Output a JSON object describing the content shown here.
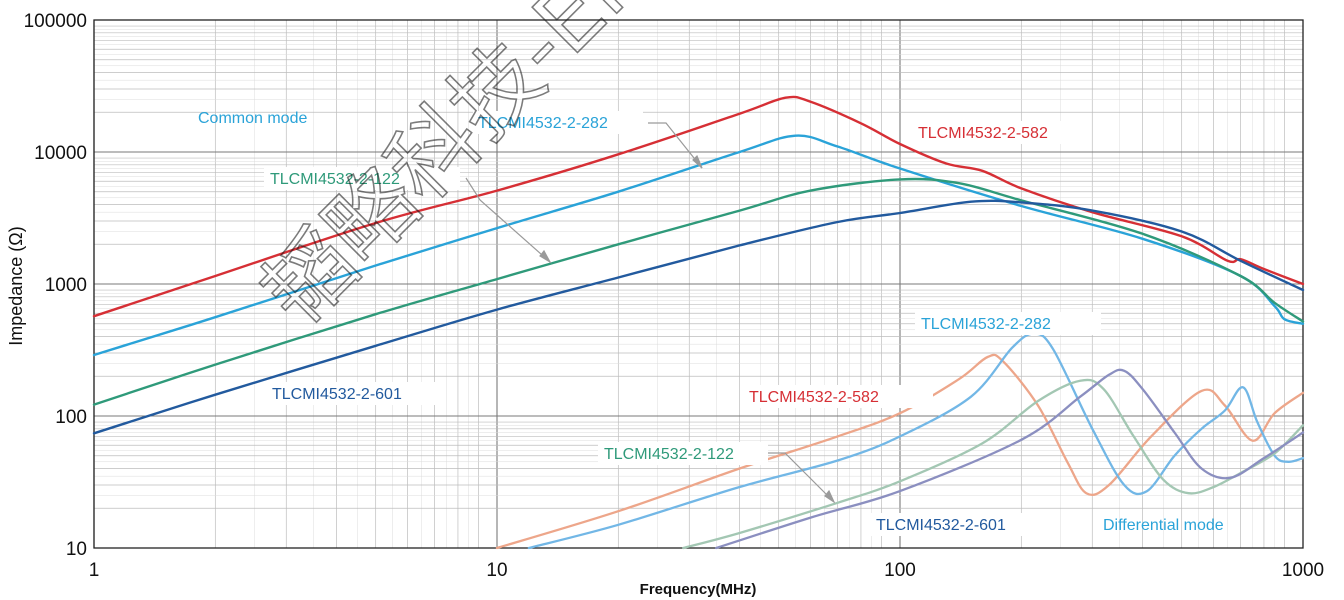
{
  "chart_data": {
    "type": "line",
    "xlabel": "Frequency(MHz)",
    "ylabel": "Impedance (Ω)",
    "x_scale": "log",
    "y_scale": "log",
    "xlim": [
      1,
      1000
    ],
    "ylim": [
      10,
      100000
    ],
    "grid": true,
    "x_ticks": [
      1,
      10,
      100,
      1000
    ],
    "x_tick_labels": [
      "1",
      "10",
      "100",
      "1000"
    ],
    "y_ticks": [
      10,
      100,
      1000,
      10000,
      100000
    ],
    "y_tick_labels": [
      "10",
      "100",
      "1000",
      "10000",
      "100000"
    ],
    "group_labels": {
      "common": "Common mode",
      "differential": "Differential mode"
    },
    "watermark": "韬略科技-EMC",
    "series": [
      {
        "name": "TLCMI4532-2-582",
        "mode": "common",
        "color": "#d62f35",
        "points": [
          [
            1,
            570
          ],
          [
            2,
            1150
          ],
          [
            5,
            2900
          ],
          [
            10,
            5100
          ],
          [
            20,
            9600
          ],
          [
            40,
            19500
          ],
          [
            52,
            25800
          ],
          [
            60,
            24000
          ],
          [
            80,
            16500
          ],
          [
            100,
            11500
          ],
          [
            130,
            8200
          ],
          [
            160,
            7200
          ],
          [
            200,
            5300
          ],
          [
            300,
            3500
          ],
          [
            500,
            2300
          ],
          [
            650,
            1500
          ],
          [
            700,
            1540
          ],
          [
            800,
            1300
          ],
          [
            1000,
            1000
          ]
        ]
      },
      {
        "name": "TLCMI4532-2-282",
        "mode": "common",
        "color": "#2aa3d8",
        "points": [
          [
            1,
            290
          ],
          [
            2,
            560
          ],
          [
            5,
            1380
          ],
          [
            10,
            2650
          ],
          [
            20,
            5000
          ],
          [
            40,
            10000
          ],
          [
            55,
            13300
          ],
          [
            70,
            11000
          ],
          [
            100,
            7500
          ],
          [
            200,
            3900
          ],
          [
            400,
            2200
          ],
          [
            700,
            1150
          ],
          [
            850,
            680
          ],
          [
            900,
            540
          ],
          [
            1000,
            500
          ]
        ]
      },
      {
        "name": "TLCMI4532-2-122",
        "mode": "common",
        "color": "#2f9a7a",
        "points": [
          [
            1,
            122
          ],
          [
            2,
            245
          ],
          [
            5,
            590
          ],
          [
            10,
            1090
          ],
          [
            20,
            2000
          ],
          [
            40,
            3600
          ],
          [
            60,
            5100
          ],
          [
            100,
            6200
          ],
          [
            140,
            5800
          ],
          [
            200,
            4300
          ],
          [
            400,
            2400
          ],
          [
            700,
            1150
          ],
          [
            850,
            720
          ],
          [
            1000,
            520
          ]
        ]
      },
      {
        "name": "TLCMI4532-2-601",
        "mode": "common",
        "color": "#225a9e",
        "points": [
          [
            1,
            74
          ],
          [
            2,
            145
          ],
          [
            5,
            340
          ],
          [
            10,
            640
          ],
          [
            20,
            1120
          ],
          [
            40,
            1960
          ],
          [
            70,
            2950
          ],
          [
            100,
            3450
          ],
          [
            150,
            4200
          ],
          [
            200,
            4150
          ],
          [
            300,
            3600
          ],
          [
            500,
            2500
          ],
          [
            700,
            1500
          ],
          [
            1000,
            900
          ]
        ]
      },
      {
        "name": "TLCMI4532-2-582",
        "mode": "differential",
        "color": "#eda68a",
        "points": [
          [
            10,
            10
          ],
          [
            20,
            19
          ],
          [
            40,
            40
          ],
          [
            70,
            70
          ],
          [
            100,
            105
          ],
          [
            140,
            190
          ],
          [
            165,
            280
          ],
          [
            180,
            260
          ],
          [
            220,
            120
          ],
          [
            260,
            45
          ],
          [
            290,
            26
          ],
          [
            330,
            30
          ],
          [
            420,
            70
          ],
          [
            560,
            155
          ],
          [
            640,
            120
          ],
          [
            750,
            65
          ],
          [
            850,
            105
          ],
          [
            1000,
            150
          ]
        ]
      },
      {
        "name": "TLCMI4532-2-282",
        "mode": "differential",
        "color": "#72b7e6",
        "points": [
          [
            12,
            10
          ],
          [
            20,
            15
          ],
          [
            40,
            29
          ],
          [
            70,
            46
          ],
          [
            100,
            70
          ],
          [
            150,
            140
          ],
          [
            190,
            330
          ],
          [
            215,
            420
          ],
          [
            240,
            320
          ],
          [
            300,
            80
          ],
          [
            360,
            30
          ],
          [
            410,
            27
          ],
          [
            480,
            50
          ],
          [
            560,
            80
          ],
          [
            640,
            110
          ],
          [
            710,
            165
          ],
          [
            770,
            90
          ],
          [
            850,
            50
          ],
          [
            920,
            45
          ],
          [
            1000,
            48
          ]
        ]
      },
      {
        "name": "TLCMI4532-2-122",
        "mode": "differential",
        "color": "#a3c7b3",
        "points": [
          [
            29,
            10
          ],
          [
            40,
            13
          ],
          [
            70,
            22
          ],
          [
            100,
            32
          ],
          [
            160,
            62
          ],
          [
            220,
            130
          ],
          [
            280,
            185
          ],
          [
            320,
            160
          ],
          [
            380,
            70
          ],
          [
            450,
            33
          ],
          [
            520,
            26
          ],
          [
            600,
            29
          ],
          [
            700,
            37
          ],
          [
            850,
            52
          ],
          [
            1000,
            85
          ]
        ]
      },
      {
        "name": "TLCMI4532-2-601",
        "mode": "differential",
        "color": "#8b8fc0",
        "points": [
          [
            35,
            10
          ],
          [
            60,
            17
          ],
          [
            100,
            27
          ],
          [
            200,
            66
          ],
          [
            280,
            140
          ],
          [
            330,
            205
          ],
          [
            360,
            220
          ],
          [
            400,
            160
          ],
          [
            480,
            75
          ],
          [
            560,
            40
          ],
          [
            660,
            34
          ],
          [
            800,
            48
          ],
          [
            1000,
            75
          ]
        ]
      }
    ]
  }
}
